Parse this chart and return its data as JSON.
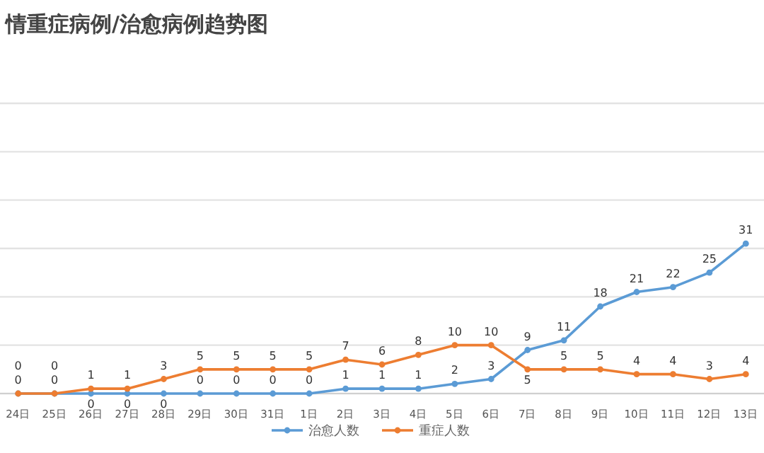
{
  "chart_data": {
    "type": "line",
    "title": "情重症病例/治愈病例趋势图",
    "categories": [
      "24日",
      "25日",
      "26日",
      "27日",
      "28日",
      "29日",
      "30日",
      "31日",
      "1日",
      "2日",
      "3日",
      "4日",
      "5日",
      "6日",
      "7日",
      "8日",
      "9日",
      "10日",
      "11日",
      "12日",
      "13日"
    ],
    "series": [
      {
        "name": "治愈人数",
        "color": "#5b9bd5",
        "values": [
          0,
          0,
          0,
          0,
          0,
          0,
          0,
          0,
          0,
          1,
          1,
          1,
          2,
          3,
          9,
          11,
          18,
          21,
          22,
          25,
          31
        ]
      },
      {
        "name": "重症人数",
        "color": "#ed7d31",
        "values": [
          0,
          0,
          1,
          1,
          3,
          5,
          5,
          5,
          5,
          7,
          6,
          8,
          10,
          10,
          5,
          5,
          5,
          4,
          4,
          3,
          4
        ]
      }
    ],
    "ylim": [
      0,
      60
    ],
    "yticks": [
      {
        "value": 0,
        "label": null
      },
      {
        "value": 10,
        "label": null
      },
      {
        "value": 20,
        "label": null
      },
      {
        "value": 30,
        "label": null
      },
      {
        "value": 40,
        "label": null
      },
      {
        "value": 50,
        "label": null
      },
      {
        "value": 60,
        "label": null
      }
    ],
    "grid": "y",
    "data_labels": true,
    "marker": "circle",
    "legend": "bottom",
    "tick_labels": "x"
  }
}
